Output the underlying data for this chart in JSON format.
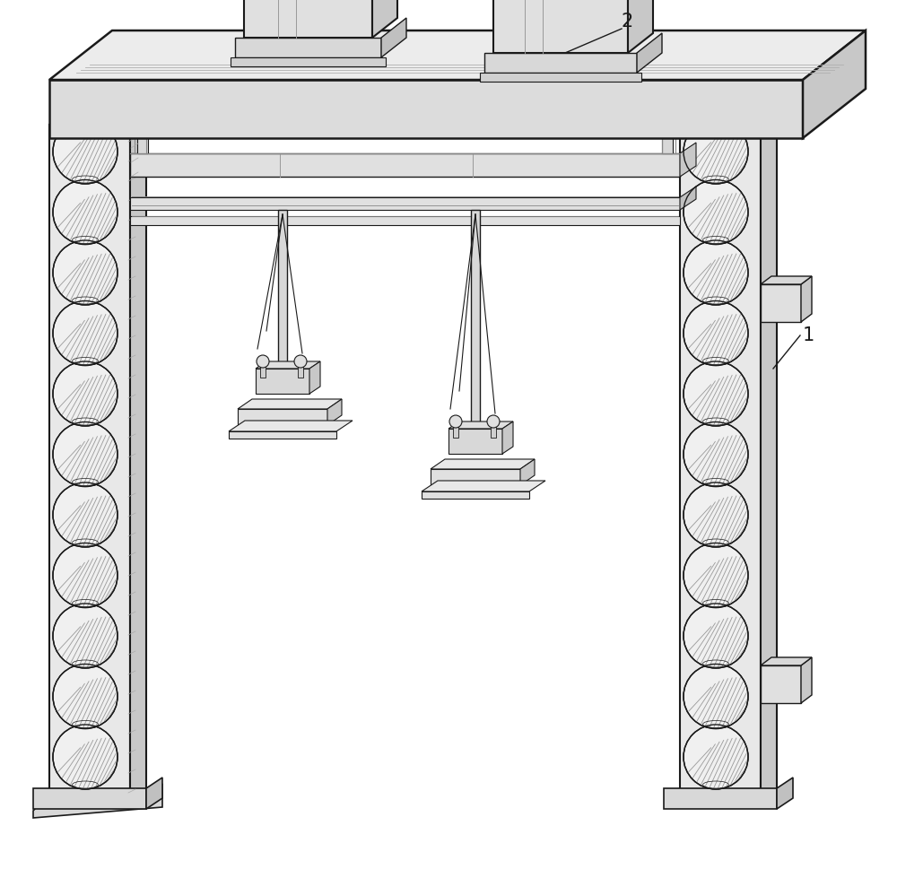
{
  "bg_color": "#ffffff",
  "line_color": "#1a1a1a",
  "label_1": "1",
  "label_2": "2",
  "figsize": [
    10.0,
    9.7
  ],
  "dpi": 100,
  "col_fill_front": "#e8e8e8",
  "col_fill_side": "#d0d0d0",
  "col_fill_top": "#f0f0f0",
  "beam_fill_front": "#e0e0e0",
  "beam_fill_top": "#ebebeb",
  "beam_fill_side": "#c8c8c8",
  "circle_fill": "#f8f8f8",
  "hatch_color": "#aaaaaa"
}
